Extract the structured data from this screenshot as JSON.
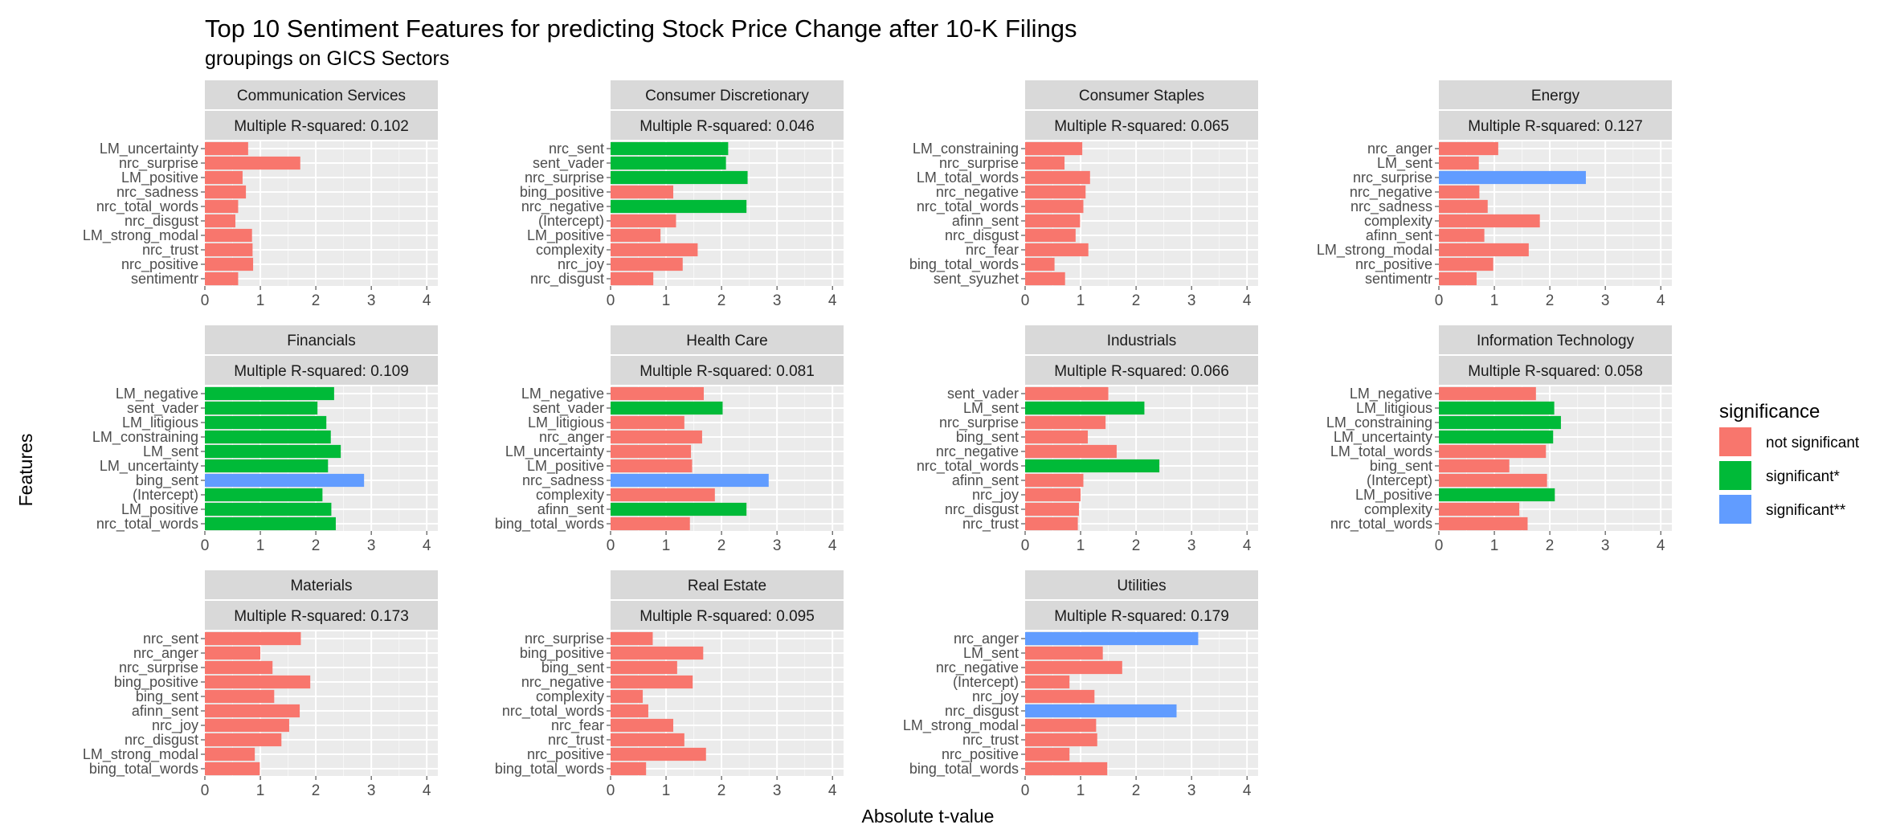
{
  "chart_data": {
    "type": "bar",
    "orientation": "horizontal",
    "title": "Top 10 Sentiment Features for predicting Stock Price Change after 10-K Filings",
    "subtitle": "groupings on GICS Sectors",
    "xlabel": "Absolute t-value",
    "ylabel": "Features",
    "xlim": [
      0,
      4.2
    ],
    "xticks": [
      0,
      1,
      2,
      3,
      4
    ],
    "grid": true,
    "legend": {
      "title": "significance",
      "position": "right",
      "entries": [
        {
          "key": "ns",
          "label": "not significant",
          "color": "#F8766D"
        },
        {
          "key": "s1",
          "label": "significant*",
          "color": "#00BA38"
        },
        {
          "key": "s2",
          "label": "significant**",
          "color": "#619CFF"
        }
      ]
    },
    "facets": [
      {
        "sector": "Communication Services",
        "r_squared": "Multiple R-squared: 0.102",
        "features": [
          "LM_uncertainty",
          "nrc_surprise",
          "LM_positive",
          "nrc_sadness",
          "nrc_total_words",
          "nrc_disgust",
          "LM_strong_modal",
          "nrc_trust",
          "nrc_positive",
          "sentimentr"
        ],
        "values": [
          0.78,
          1.72,
          0.68,
          0.74,
          0.6,
          0.55,
          0.85,
          0.86,
          0.87,
          0.6
        ],
        "significance": [
          "ns",
          "ns",
          "ns",
          "ns",
          "ns",
          "ns",
          "ns",
          "ns",
          "ns",
          "ns"
        ]
      },
      {
        "sector": "Consumer Discretionary",
        "r_squared": "Multiple R-squared: 0.046",
        "features": [
          "nrc_sent",
          "sent_vader",
          "nrc_surprise",
          "bing_positive",
          "nrc_negative",
          "(Intercept)",
          "LM_positive",
          "complexity",
          "nrc_joy",
          "nrc_disgust"
        ],
        "values": [
          2.12,
          2.08,
          2.47,
          1.13,
          2.45,
          1.18,
          0.9,
          1.57,
          1.3,
          0.77
        ],
        "significance": [
          "s1",
          "s1",
          "s1",
          "ns",
          "s1",
          "ns",
          "ns",
          "ns",
          "ns",
          "ns"
        ]
      },
      {
        "sector": "Consumer Staples",
        "r_squared": "Multiple R-squared: 0.065",
        "features": [
          "LM_constraining",
          "nrc_surprise",
          "LM_total_words",
          "nrc_negative",
          "nrc_total_words",
          "afinn_sent",
          "nrc_disgust",
          "nrc_fear",
          "bing_total_words",
          "sent_syuzhet"
        ],
        "values": [
          1.03,
          0.71,
          1.17,
          1.09,
          1.05,
          0.99,
          0.91,
          1.14,
          0.53,
          0.72
        ],
        "significance": [
          "ns",
          "ns",
          "ns",
          "ns",
          "ns",
          "ns",
          "ns",
          "ns",
          "ns",
          "ns"
        ]
      },
      {
        "sector": "Energy",
        "r_squared": "Multiple R-squared: 0.127",
        "features": [
          "nrc_anger",
          "LM_sent",
          "nrc_surprise",
          "nrc_negative",
          "nrc_sadness",
          "complexity",
          "afinn_sent",
          "LM_strong_modal",
          "nrc_positive",
          "sentimentr"
        ],
        "values": [
          1.07,
          0.72,
          2.65,
          0.73,
          0.88,
          1.82,
          0.82,
          1.62,
          0.98,
          0.68
        ],
        "significance": [
          "ns",
          "ns",
          "s2",
          "ns",
          "ns",
          "ns",
          "ns",
          "ns",
          "ns",
          "ns"
        ]
      },
      {
        "sector": "Financials",
        "r_squared": "Multiple R-squared: 0.109",
        "features": [
          "LM_negative",
          "sent_vader",
          "LM_litigious",
          "LM_constraining",
          "LM_sent",
          "LM_uncertainty",
          "bing_sent",
          "(Intercept)",
          "LM_positive",
          "nrc_total_words"
        ],
        "values": [
          2.33,
          2.03,
          2.19,
          2.27,
          2.45,
          2.22,
          2.87,
          2.12,
          2.28,
          2.36
        ],
        "significance": [
          "s1",
          "s1",
          "s1",
          "s1",
          "s1",
          "s1",
          "s2",
          "s1",
          "s1",
          "s1"
        ]
      },
      {
        "sector": "Health Care",
        "r_squared": "Multiple R-squared: 0.081",
        "features": [
          "LM_negative",
          "sent_vader",
          "LM_litigious",
          "nrc_anger",
          "LM_uncertainty",
          "LM_positive",
          "nrc_sadness",
          "complexity",
          "afinn_sent",
          "bing_total_words"
        ],
        "values": [
          1.68,
          2.02,
          1.33,
          1.65,
          1.45,
          1.47,
          2.85,
          1.88,
          2.45,
          1.43
        ],
        "significance": [
          "ns",
          "s1",
          "ns",
          "ns",
          "ns",
          "ns",
          "s2",
          "ns",
          "s1",
          "ns"
        ]
      },
      {
        "sector": "Industrials",
        "r_squared": "Multiple R-squared: 0.066",
        "features": [
          "sent_vader",
          "LM_sent",
          "nrc_surprise",
          "bing_sent",
          "nrc_negative",
          "nrc_total_words",
          "afinn_sent",
          "nrc_joy",
          "nrc_disgust",
          "nrc_trust"
        ],
        "values": [
          1.5,
          2.15,
          1.45,
          1.13,
          1.65,
          2.42,
          1.05,
          1.0,
          0.97,
          0.95
        ],
        "significance": [
          "ns",
          "s1",
          "ns",
          "ns",
          "ns",
          "s1",
          "ns",
          "ns",
          "ns",
          "ns"
        ]
      },
      {
        "sector": "Information Technology",
        "r_squared": "Multiple R-squared: 0.058",
        "features": [
          "LM_negative",
          "LM_litigious",
          "LM_constraining",
          "LM_uncertainty",
          "LM_total_words",
          "bing_sent",
          "(Intercept)",
          "LM_positive",
          "complexity",
          "nrc_total_words"
        ],
        "values": [
          1.75,
          2.08,
          2.2,
          2.06,
          1.93,
          1.27,
          1.95,
          2.09,
          1.45,
          1.6
        ],
        "significance": [
          "ns",
          "s1",
          "s1",
          "s1",
          "ns",
          "ns",
          "ns",
          "s1",
          "ns",
          "ns"
        ]
      },
      {
        "sector": "Materials",
        "r_squared": "Multiple R-squared: 0.173",
        "features": [
          "nrc_sent",
          "nrc_anger",
          "nrc_surprise",
          "bing_positive",
          "bing_sent",
          "afinn_sent",
          "nrc_joy",
          "nrc_disgust",
          "LM_strong_modal",
          "bing_total_words"
        ],
        "values": [
          1.73,
          1.0,
          1.22,
          1.9,
          1.25,
          1.71,
          1.52,
          1.38,
          0.9,
          0.99
        ],
        "significance": [
          "ns",
          "ns",
          "ns",
          "ns",
          "ns",
          "ns",
          "ns",
          "ns",
          "ns",
          "ns"
        ]
      },
      {
        "sector": "Real Estate",
        "r_squared": "Multiple R-squared: 0.095",
        "features": [
          "nrc_surprise",
          "bing_positive",
          "bing_sent",
          "nrc_negative",
          "complexity",
          "nrc_total_words",
          "nrc_fear",
          "nrc_trust",
          "nrc_positive",
          "bing_total_words"
        ],
        "values": [
          0.76,
          1.67,
          1.2,
          1.48,
          0.58,
          0.68,
          1.13,
          1.33,
          1.72,
          0.64
        ],
        "significance": [
          "ns",
          "ns",
          "ns",
          "ns",
          "ns",
          "ns",
          "ns",
          "ns",
          "ns",
          "ns"
        ]
      },
      {
        "sector": "Utilities",
        "r_squared": "Multiple R-squared: 0.179",
        "features": [
          "nrc_anger",
          "LM_sent",
          "nrc_negative",
          "(Intercept)",
          "nrc_joy",
          "nrc_disgust",
          "LM_strong_modal",
          "nrc_trust",
          "nrc_positive",
          "bing_total_words"
        ],
        "values": [
          3.12,
          1.4,
          1.75,
          0.8,
          1.25,
          2.73,
          1.28,
          1.3,
          0.8,
          1.48
        ],
        "significance": [
          "s2",
          "ns",
          "ns",
          "ns",
          "ns",
          "s2",
          "ns",
          "ns",
          "ns",
          "ns"
        ]
      }
    ]
  }
}
